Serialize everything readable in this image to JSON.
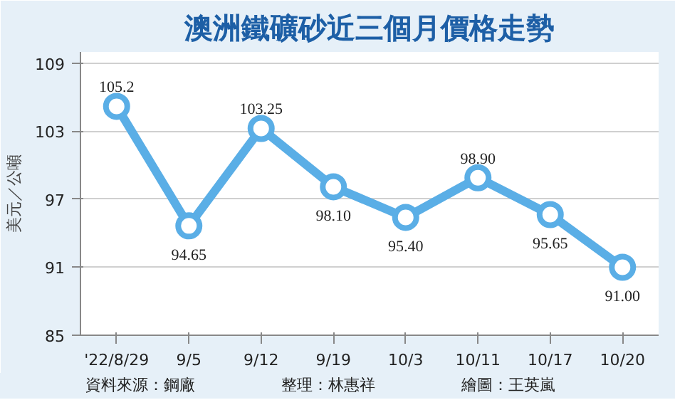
{
  "chart_data": {
    "type": "line",
    "title": "澳洲鐵礦砂近三個月價格走勢",
    "ylabel": "美元／公噸",
    "categories": [
      "'22/8/29",
      "9/5",
      "9/12",
      "9/19",
      "10/3",
      "10/11",
      "10/17",
      "10/20"
    ],
    "series": [
      {
        "color": "#5aaee6",
        "values": [
          105.2,
          94.65,
          103.25,
          98.1,
          95.4,
          98.9,
          95.65,
          91.0
        ],
        "value_labels": [
          "105.2",
          "94.65",
          "103.25",
          "98.10",
          "95.40",
          "98.90",
          "95.65",
          "91.00"
        ]
      }
    ],
    "ylim": [
      85,
      110
    ],
    "yticks": [
      85,
      91,
      97,
      103,
      109
    ],
    "grid": "y",
    "marker": "circle",
    "line_style": "solid",
    "annotations": [
      "資料來源：鋼廠",
      "整理：林惠祥",
      "繪圖：王英嵐"
    ]
  }
}
